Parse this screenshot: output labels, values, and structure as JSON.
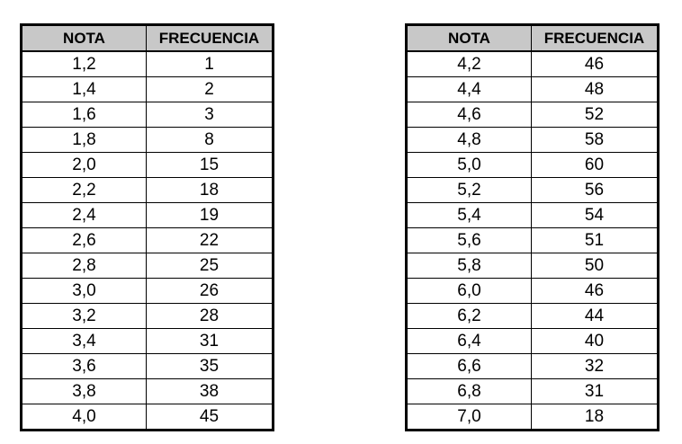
{
  "headers": {
    "nota": "NOTA",
    "frecuencia": "FRECUENCIA"
  },
  "header_background": "#c8c8c8",
  "tables": [
    {
      "rows": [
        {
          "nota": "1,2",
          "frecuencia": "1"
        },
        {
          "nota": "1,4",
          "frecuencia": "2"
        },
        {
          "nota": "1,6",
          "frecuencia": "3"
        },
        {
          "nota": "1,8",
          "frecuencia": "8"
        },
        {
          "nota": "2,0",
          "frecuencia": "15"
        },
        {
          "nota": "2,2",
          "frecuencia": "18"
        },
        {
          "nota": "2,4",
          "frecuencia": "19"
        },
        {
          "nota": "2,6",
          "frecuencia": "22"
        },
        {
          "nota": "2,8",
          "frecuencia": "25"
        },
        {
          "nota": "3,0",
          "frecuencia": "26"
        },
        {
          "nota": "3,2",
          "frecuencia": "28"
        },
        {
          "nota": "3,4",
          "frecuencia": "31"
        },
        {
          "nota": "3,6",
          "frecuencia": "35"
        },
        {
          "nota": "3,8",
          "frecuencia": "38"
        },
        {
          "nota": "4,0",
          "frecuencia": "45"
        }
      ]
    },
    {
      "rows": [
        {
          "nota": "4,2",
          "frecuencia": "46"
        },
        {
          "nota": "4,4",
          "frecuencia": "48"
        },
        {
          "nota": "4,6",
          "frecuencia": "52"
        },
        {
          "nota": "4,8",
          "frecuencia": "58"
        },
        {
          "nota": "5,0",
          "frecuencia": "60"
        },
        {
          "nota": "5,2",
          "frecuencia": "56"
        },
        {
          "nota": "5,4",
          "frecuencia": "54"
        },
        {
          "nota": "5,6",
          "frecuencia": "51"
        },
        {
          "nota": "5,8",
          "frecuencia": "50"
        },
        {
          "nota": "6,0",
          "frecuencia": "46"
        },
        {
          "nota": "6,2",
          "frecuencia": "44"
        },
        {
          "nota": "6,4",
          "frecuencia": "40"
        },
        {
          "nota": "6,6",
          "frecuencia": "32"
        },
        {
          "nota": "6,8",
          "frecuencia": "31"
        },
        {
          "nota": "7,0",
          "frecuencia": "18"
        }
      ]
    }
  ]
}
